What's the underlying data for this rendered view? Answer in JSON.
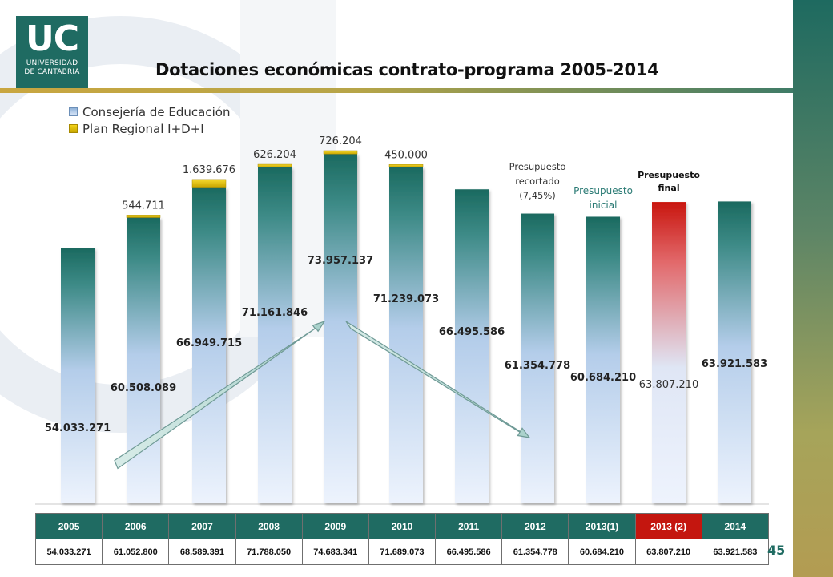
{
  "logo": {
    "mark": "UC",
    "line1": "UNIVERSIDAD",
    "line2": "DE CANTABRIA"
  },
  "colors": {
    "teal": "#1f6b62",
    "highlight_red": "#c4160f",
    "plan_yellow": "#f2d21a",
    "education_light": "#dce8fa"
  },
  "page_number": "45",
  "chart_data": {
    "type": "bar",
    "title": "Dotaciones económicas contrato-programa 2005-2014",
    "xlabel": "",
    "ylabel": "",
    "ylim": [
      0,
      80000000
    ],
    "grid": false,
    "legend_position": "top-left",
    "categories": [
      "2005",
      "2006",
      "2007",
      "2008",
      "2009",
      "2010",
      "2011",
      "2012",
      "2013(1)",
      "2013 (2)",
      "2014"
    ],
    "series": [
      {
        "name": "Consejería de Educación",
        "values": [
          54033271,
          60508089,
          66949715,
          71161846,
          73957137,
          71239073,
          66495586,
          61354778,
          60684210,
          63807210,
          63921583
        ],
        "labels": [
          "54.033.271",
          "60.508.089",
          "66.949.715",
          "71.161.846",
          "73.957.137",
          "71.239.073",
          "66.495.586",
          "61.354.778",
          "60.684.210",
          "63.807.210",
          "63.921.583"
        ]
      },
      {
        "name": "Plan Regional I+D+I",
        "values": [
          0,
          544711,
          1639676,
          626204,
          726204,
          450000,
          0,
          0,
          0,
          0,
          0
        ],
        "labels": [
          "",
          "544.711",
          "1.639.676",
          "626.204",
          "726.204",
          "450.000",
          "",
          "",
          "",
          "",
          ""
        ]
      }
    ],
    "annotations": [
      {
        "category": "2012",
        "text": "Presupuesto recortado (7,45%)"
      },
      {
        "category": "2013(1)",
        "text": "Presupuesto inicial"
      },
      {
        "category": "2013 (2)",
        "text": "Presupuesto final"
      }
    ],
    "highlight_category": "2013 (2)"
  },
  "table": {
    "headers": [
      "2005",
      "2006",
      "2007",
      "2008",
      "2009",
      "2010",
      "2011",
      "2012",
      "2013(1)",
      "2013 (2)",
      "2014"
    ],
    "totals": [
      "54.033.271",
      "61.052.800",
      "68.589.391",
      "71.788.050",
      "74.683.341",
      "71.689.073",
      "66.495.586",
      "61.354.778",
      "60.684.210",
      "63.807.210",
      "63.921.583"
    ]
  }
}
